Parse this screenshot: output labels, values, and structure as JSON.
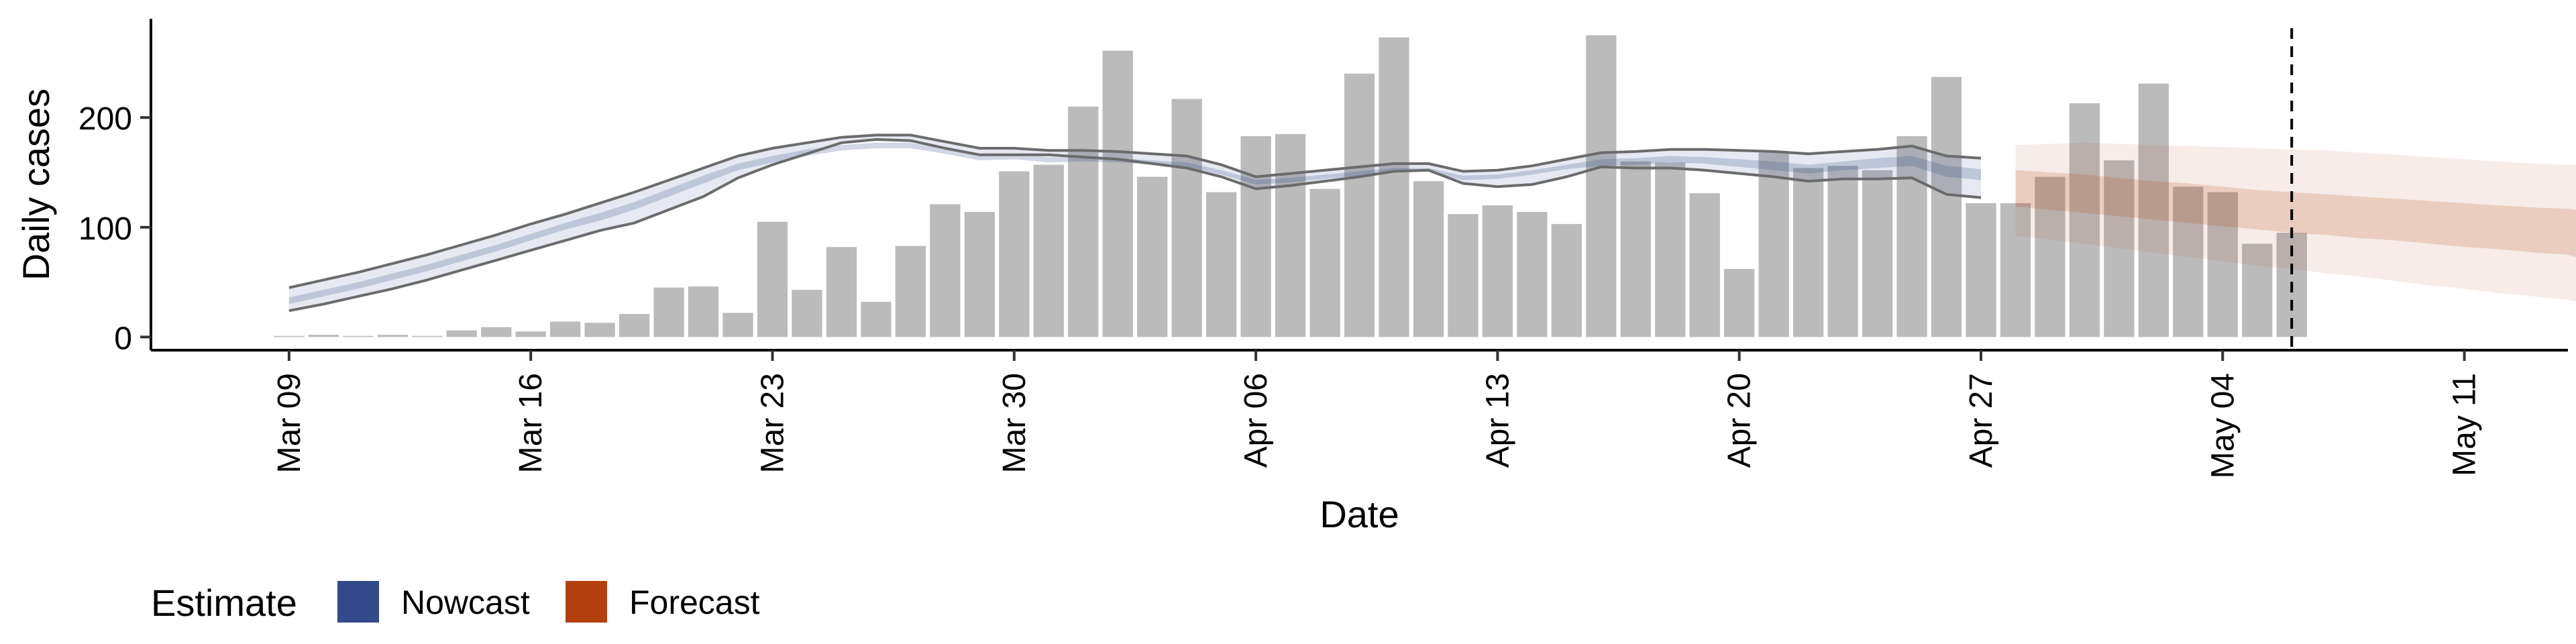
{
  "chart_data": {
    "type": "bar",
    "xlabel": "Date",
    "ylabel": "Daily cases",
    "x_ticks": [
      "Mar 09",
      "Mar 16",
      "Mar 23",
      "Mar 30",
      "Apr 06",
      "Apr 13",
      "Apr 20",
      "Apr 27",
      "May 04",
      "May 11"
    ],
    "y_ticks": [
      0,
      100,
      200
    ],
    "ylim": [
      -12,
      290
    ],
    "xlim": [
      "2020-03-05",
      "2020-05-14"
    ],
    "start_date": "2020-03-09",
    "grid": false,
    "reference_line_date": "2020-05-06",
    "legend": {
      "title": "Estimate",
      "position": "bottom-left",
      "items": [
        {
          "label": "Nowcast",
          "color": "#344a8a"
        },
        {
          "label": "Forecast",
          "color": "#b5400f"
        }
      ]
    },
    "daily_cases": [
      1,
      2,
      1,
      2,
      1,
      6,
      9,
      5,
      14,
      13,
      21,
      45,
      46,
      22,
      105,
      43,
      82,
      32,
      83,
      121,
      114,
      151,
      157,
      210,
      261,
      146,
      217,
      132,
      183,
      185,
      135,
      240,
      273,
      142,
      112,
      120,
      114,
      103,
      275,
      160,
      159,
      131,
      62,
      168,
      154,
      156,
      152,
      183,
      237,
      122,
      122,
      146,
      213,
      161,
      231,
      137,
      132,
      85,
      95
    ],
    "nowcast_outer_upper": [
      45,
      52,
      59,
      67,
      75,
      84,
      93,
      103,
      112,
      122,
      132,
      143,
      154,
      165,
      172,
      177,
      182,
      184,
      184,
      178,
      172,
      172,
      170,
      170,
      169,
      167,
      165,
      157,
      146,
      149,
      152,
      155,
      158,
      158,
      151,
      152,
      156,
      162,
      168,
      169,
      171,
      171,
      170,
      169,
      167,
      169,
      171,
      174,
      165,
      163
    ],
    "nowcast_inner_upper": [
      36,
      43,
      50,
      58,
      66,
      75,
      84,
      94,
      104,
      113,
      123,
      135,
      147,
      158,
      165,
      171,
      175,
      177,
      177,
      172,
      166,
      167,
      164,
      164,
      163,
      161,
      159,
      152,
      143,
      145,
      148,
      151,
      154,
      154,
      147,
      148,
      152,
      157,
      162,
      163,
      165,
      164,
      162,
      160,
      157,
      160,
      163,
      165,
      156,
      153
    ],
    "nowcast_inner_lower": [
      30,
      37,
      44,
      52,
      60,
      69,
      78,
      88,
      98,
      106,
      116,
      128,
      140,
      152,
      159,
      165,
      170,
      172,
      172,
      167,
      161,
      162,
      159,
      160,
      159,
      157,
      155,
      148,
      139,
      141,
      144,
      147,
      150,
      151,
      143,
      144,
      148,
      153,
      156,
      157,
      159,
      158,
      155,
      152,
      149,
      152,
      154,
      156,
      146,
      143
    ],
    "nowcast_outer_lower": [
      24,
      30,
      37,
      44,
      52,
      61,
      70,
      79,
      88,
      97,
      104,
      116,
      128,
      145,
      157,
      167,
      177,
      180,
      179,
      172,
      166,
      166,
      166,
      164,
      162,
      158,
      154,
      146,
      135,
      138,
      142,
      146,
      151,
      152,
      140,
      137,
      139,
      146,
      155,
      154,
      154,
      152,
      149,
      146,
      142,
      144,
      144,
      145,
      130,
      127
    ],
    "forecast_outer_upper": [
      175,
      176,
      177,
      176,
      175,
      174,
      173,
      172,
      171,
      170,
      168,
      166,
      164,
      162,
      160,
      158,
      157,
      156,
      155
    ],
    "forecast_inner_upper": [
      152,
      150,
      148,
      145,
      142,
      140,
      137,
      134,
      132,
      130,
      128,
      126,
      124,
      122,
      120,
      118,
      117,
      113,
      108
    ],
    "forecast_inner_lower": [
      119,
      116,
      113,
      110,
      107,
      104,
      101,
      98,
      95,
      93,
      90,
      88,
      85,
      82,
      80,
      77,
      75,
      65,
      55
    ],
    "forecast_outer_lower": [
      92,
      89,
      85,
      81,
      77,
      73,
      69,
      65,
      62,
      58,
      55,
      51,
      47,
      44,
      40,
      37,
      34,
      27,
      20
    ]
  }
}
